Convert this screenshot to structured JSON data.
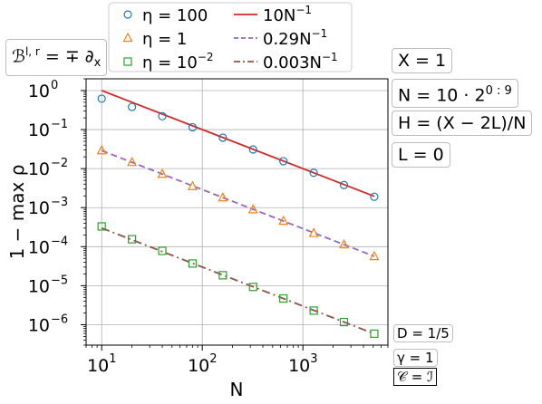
{
  "chart_data": {
    "type": "scatter",
    "xlabel": "N",
    "ylabel": "1 − max ρ",
    "xscale": "log",
    "yscale": "log",
    "xlim": [
      7,
      7000
    ],
    "ylim": [
      3e-07,
      2
    ],
    "grid": true,
    "legend_position": "top",
    "x_ticks": [
      "10",
      "10",
      "10"
    ],
    "x_tick_exps": [
      "1",
      "2",
      "3"
    ],
    "y_ticks": [
      "10",
      "10",
      "10",
      "10",
      "10",
      "10",
      "10"
    ],
    "y_tick_exps": [
      "0",
      "−1",
      "−2",
      "−3",
      "−4",
      "−5",
      "−6"
    ],
    "x": [
      10,
      20,
      40,
      80,
      160,
      320,
      640,
      1280,
      2560,
      5120
    ],
    "series": [
      {
        "name": "η = 100",
        "name_base": "η = 100",
        "name_sup": "",
        "marker": "circle",
        "color": "#1f77b4",
        "values": [
          0.62,
          0.38,
          0.22,
          0.115,
          0.062,
          0.031,
          0.0155,
          0.0078,
          0.0038,
          0.0019
        ]
      },
      {
        "name": "η = 1",
        "name_base": "η = 1",
        "name_sup": "",
        "marker": "triangle",
        "color": "#ff7f0e",
        "values": [
          0.029,
          0.0145,
          0.0072,
          0.0035,
          0.0018,
          0.00089,
          0.00045,
          0.00022,
          0.000112,
          5.6e-05
        ]
      },
      {
        "name": "η = 10−2",
        "name_base": "η = 10",
        "name_sup": "−2",
        "marker": "square",
        "color": "#2ca02c",
        "values": [
          0.00033,
          0.000155,
          7.8e-05,
          3.7e-05,
          1.85e-05,
          9.3e-06,
          4.7e-06,
          2.3e-06,
          1.17e-06,
          5.9e-07
        ]
      }
    ],
    "fit_lines": [
      {
        "name": "10N−1",
        "name_base": "10N",
        "name_sup": "−1",
        "coefficient": 10,
        "color": "#d62728",
        "style": "solid"
      },
      {
        "name": "0.29N−1",
        "name_base": "0.29N",
        "name_sup": "−1",
        "coefficient": 0.29,
        "color": "#9467bd",
        "style": "dashed"
      },
      {
        "name": "0.003N−1",
        "name_base": "0.003N",
        "name_sup": "−1",
        "coefficient": 0.003,
        "color": "#8c564b",
        "style": "dashdot"
      }
    ]
  },
  "annotations": {
    "boundary_base": "ℬ",
    "boundary_sup": "l, r",
    "boundary_rest": " = ∓ ∂",
    "boundary_sub": "x",
    "x_param": "X = 1",
    "n_base": "N = 10 · 2",
    "n_sup": "0 : 9",
    "h_param": "H = (X − 2L)/N",
    "l_param": "L = 0",
    "d_param": "D = 1/5",
    "gamma_param": "γ = 1",
    "c_param": "𝒞 = ℐ"
  }
}
